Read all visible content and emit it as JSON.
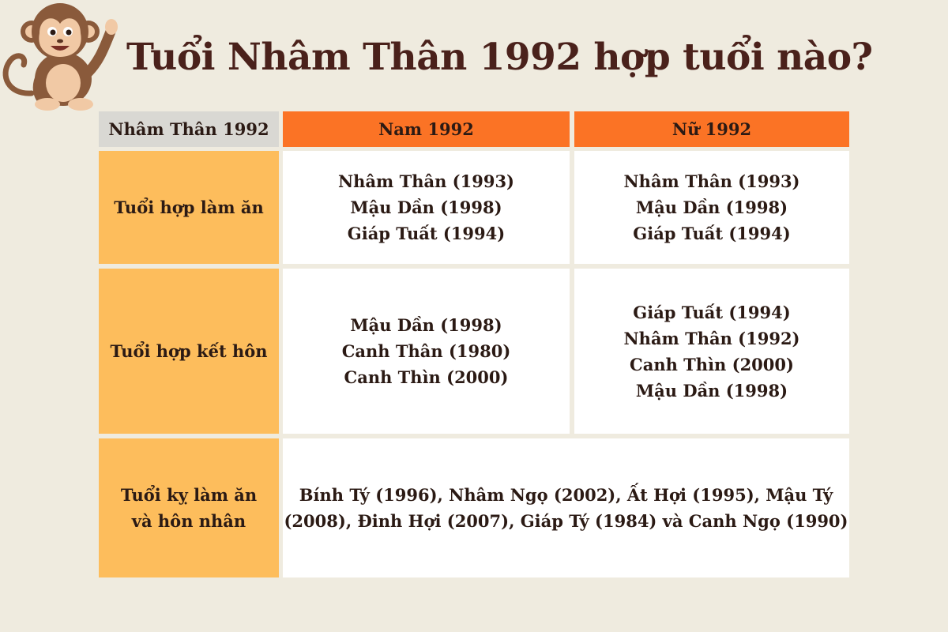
{
  "title": "Tuổi Nhâm Thân 1992 hợp tuổi nào?",
  "header": {
    "corner": "Nhâm Thân 1992",
    "male": "Nam 1992",
    "female": "Nữ 1992"
  },
  "rows": {
    "business": {
      "label": "Tuổi hợp làm ăn",
      "male": [
        "Nhâm Thân (1993)",
        "Mậu Dần (1998)",
        "Giáp Tuất (1994)"
      ],
      "female": [
        "Nhâm Thân (1993)",
        "Mậu Dần (1998)",
        "Giáp Tuất (1994)"
      ]
    },
    "marriage": {
      "label": "Tuổi hợp kết hôn",
      "male": [
        "Mậu Dần (1998)",
        "Canh Thân (1980)",
        "Canh Thìn (2000)"
      ],
      "female": [
        "Giáp Tuất (1994)",
        "Nhâm Thân (1992)",
        "Canh Thìn (2000)",
        "Mậu Dần (1998)"
      ]
    },
    "avoid": {
      "label": [
        "Tuổi kỵ làm ăn",
        "và hôn nhân"
      ],
      "text": [
        "Bính Tý (1996), Nhâm Ngọ (2002), Ất Hợi (1995), Mậu Tý",
        "(2008), Đinh Hợi (2007), Giáp Tý (1984) và Canh Ngọ (1990)"
      ]
    }
  },
  "colors": {
    "background": "#efebdf",
    "header_orange": "#fb7325",
    "label_yellow": "#fdbd5c",
    "corner_gray": "#d9d8d3",
    "title": "#4a211b"
  },
  "icons": {
    "mascot": "monkey-waving-icon"
  }
}
